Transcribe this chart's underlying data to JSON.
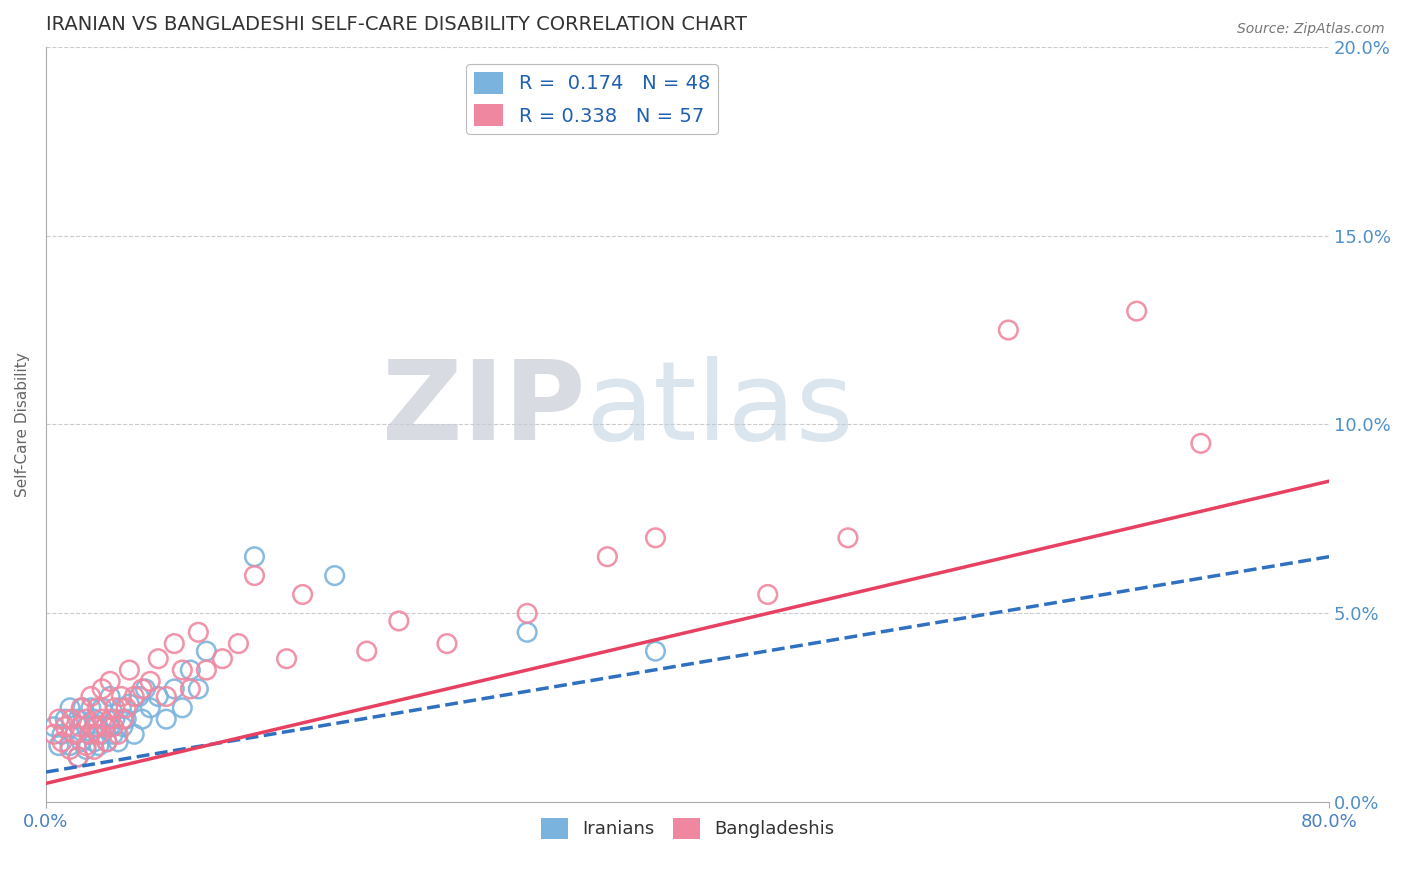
{
  "title": "IRANIAN VS BANGLADESHI SELF-CARE DISABILITY CORRELATION CHART",
  "source_text": "Source: ZipAtlas.com",
  "ylabel": "Self-Care Disability",
  "xlabel": "",
  "xlim": [
    0.0,
    0.8
  ],
  "ylim": [
    0.0,
    0.2
  ],
  "iranian_R": 0.174,
  "iranian_N": 48,
  "bangladeshi_R": 0.338,
  "bangladeshi_N": 57,
  "iranian_color": "#7ab4de",
  "bangladeshi_color": "#f087a0",
  "iranian_line_color": "#3070c0",
  "bangladeshi_line_color": "#e84060",
  "legend_label_iranian": "Iranians",
  "legend_label_bangladeshi": "Bangladeshis",
  "background_color": "#ffffff",
  "grid_color": "#cccccc",
  "title_color": "#333333",
  "axis_label_color": "#666666",
  "right_tick_color": "#5090c8",
  "iranian_line_start": 0.008,
  "iranian_line_end": 0.065,
  "bangladeshi_line_start": 0.005,
  "bangladeshi_line_end": 0.085,
  "iranian_scatter_x": [
    0.005,
    0.008,
    0.01,
    0.012,
    0.015,
    0.015,
    0.018,
    0.02,
    0.02,
    0.022,
    0.023,
    0.025,
    0.025,
    0.027,
    0.028,
    0.03,
    0.03,
    0.032,
    0.033,
    0.035,
    0.035,
    0.037,
    0.038,
    0.04,
    0.04,
    0.042,
    0.043,
    0.045,
    0.047,
    0.048,
    0.05,
    0.052,
    0.055,
    0.058,
    0.06,
    0.062,
    0.065,
    0.07,
    0.075,
    0.08,
    0.085,
    0.09,
    0.095,
    0.1,
    0.13,
    0.18,
    0.3,
    0.38
  ],
  "iranian_scatter_y": [
    0.02,
    0.015,
    0.018,
    0.022,
    0.015,
    0.025,
    0.018,
    0.012,
    0.022,
    0.016,
    0.025,
    0.014,
    0.02,
    0.018,
    0.025,
    0.016,
    0.022,
    0.02,
    0.015,
    0.018,
    0.025,
    0.02,
    0.016,
    0.02,
    0.028,
    0.018,
    0.022,
    0.016,
    0.025,
    0.02,
    0.022,
    0.026,
    0.018,
    0.028,
    0.022,
    0.03,
    0.025,
    0.028,
    0.022,
    0.03,
    0.025,
    0.035,
    0.03,
    0.04,
    0.065,
    0.06,
    0.045,
    0.04
  ],
  "bangladeshi_scatter_x": [
    0.005,
    0.008,
    0.01,
    0.012,
    0.015,
    0.016,
    0.018,
    0.02,
    0.021,
    0.022,
    0.025,
    0.025,
    0.027,
    0.028,
    0.03,
    0.03,
    0.032,
    0.033,
    0.035,
    0.035,
    0.037,
    0.038,
    0.04,
    0.04,
    0.042,
    0.043,
    0.045,
    0.047,
    0.048,
    0.05,
    0.052,
    0.055,
    0.06,
    0.065,
    0.07,
    0.075,
    0.08,
    0.085,
    0.09,
    0.095,
    0.1,
    0.11,
    0.12,
    0.13,
    0.15,
    0.16,
    0.2,
    0.22,
    0.25,
    0.3,
    0.35,
    0.38,
    0.45,
    0.5,
    0.6,
    0.68,
    0.72
  ],
  "bangladeshi_scatter_y": [
    0.018,
    0.022,
    0.016,
    0.02,
    0.014,
    0.022,
    0.018,
    0.012,
    0.02,
    0.025,
    0.015,
    0.022,
    0.018,
    0.028,
    0.014,
    0.02,
    0.025,
    0.018,
    0.022,
    0.03,
    0.02,
    0.016,
    0.022,
    0.032,
    0.02,
    0.025,
    0.018,
    0.028,
    0.022,
    0.025,
    0.035,
    0.028,
    0.03,
    0.032,
    0.038,
    0.028,
    0.042,
    0.035,
    0.03,
    0.045,
    0.035,
    0.038,
    0.042,
    0.06,
    0.038,
    0.055,
    0.04,
    0.048,
    0.042,
    0.05,
    0.065,
    0.07,
    0.055,
    0.07,
    0.125,
    0.13,
    0.095
  ]
}
